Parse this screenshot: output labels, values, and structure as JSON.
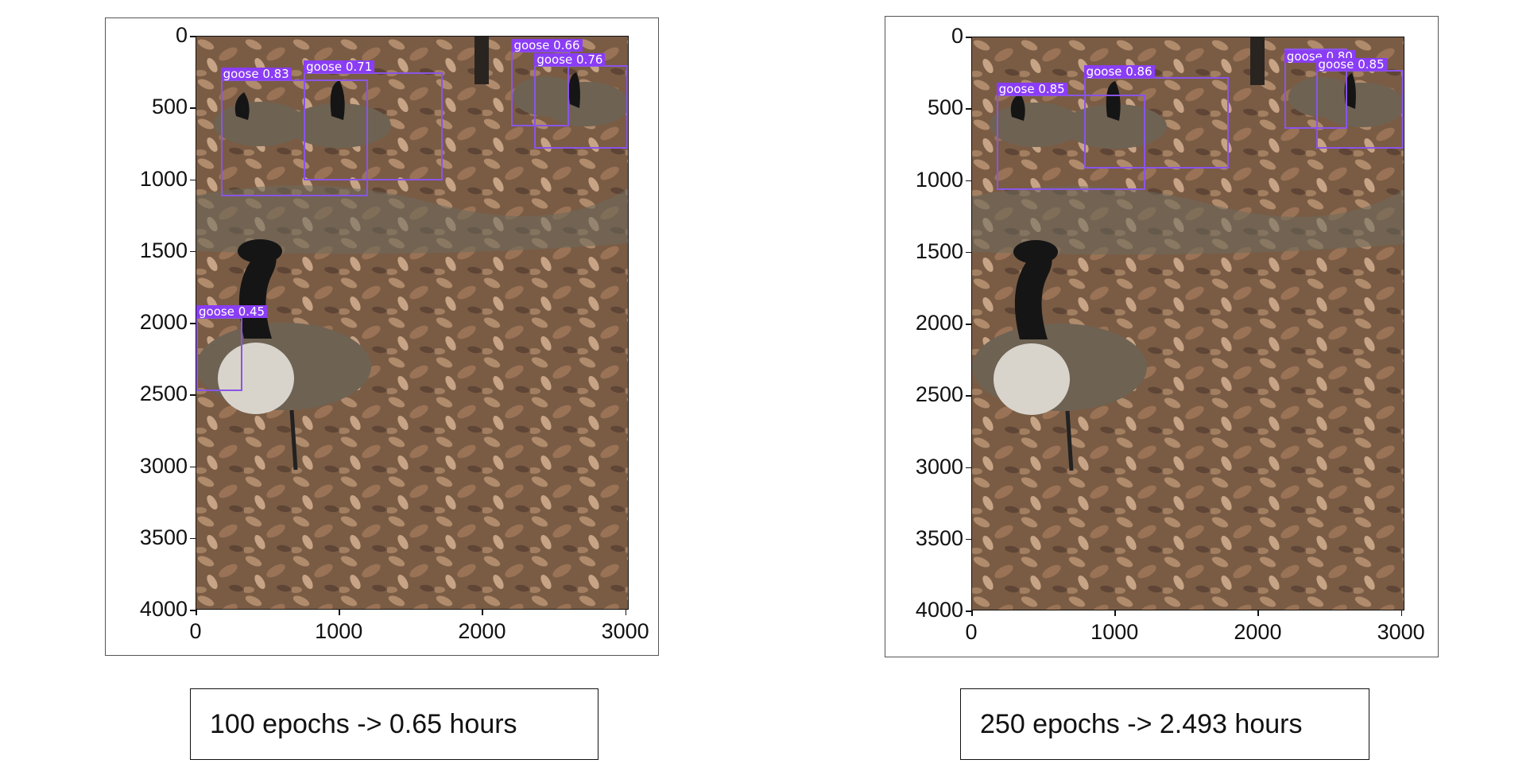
{
  "panels": [
    {
      "caption": "100 epochs -> 0.65 hours",
      "y_ticks": [
        "0",
        "500",
        "1000",
        "1500",
        "2000",
        "2500",
        "3000",
        "3500",
        "4000"
      ],
      "x_ticks": [
        "0",
        "1000",
        "2000",
        "3000"
      ],
      "detections": [
        {
          "label": "goose 0.83",
          "x1": 170,
          "y1": 300,
          "x2": 1200,
          "y2": 1120
        },
        {
          "label": "goose 0.71",
          "x1": 750,
          "y1": 250,
          "x2": 1720,
          "y2": 1010
        },
        {
          "label": "goose 0.66",
          "x1": 2200,
          "y1": 100,
          "x2": 2600,
          "y2": 630
        },
        {
          "label": "goose 0.76",
          "x1": 2360,
          "y1": 200,
          "x2": 3050,
          "y2": 790
        },
        {
          "label": "goose 0.45",
          "x1": 0,
          "y1": 1970,
          "x2": 320,
          "y2": 2490
        }
      ]
    },
    {
      "caption": "250 epochs -> 2.493 hours",
      "y_ticks": [
        "0",
        "500",
        "1000",
        "1500",
        "2000",
        "2500",
        "3000",
        "3500",
        "4000"
      ],
      "x_ticks": [
        "0",
        "1000",
        "2000",
        "3000"
      ],
      "detections": [
        {
          "label": "goose 0.85",
          "x1": 170,
          "y1": 400,
          "x2": 1210,
          "y2": 1070
        },
        {
          "label": "goose 0.86",
          "x1": 780,
          "y1": 280,
          "x2": 1790,
          "y2": 920
        },
        {
          "label": "goose 0.80",
          "x1": 2180,
          "y1": 80,
          "x2": 2620,
          "y2": 640
        },
        {
          "label": "goose 0.85",
          "x1": 2400,
          "y1": 230,
          "x2": 3050,
          "y2": 780
        }
      ]
    }
  ],
  "axis": {
    "x_max": 3024,
    "y_max": 4032
  },
  "colors": {
    "box": "#8a55e6",
    "label_bg": "#8a3df5"
  }
}
